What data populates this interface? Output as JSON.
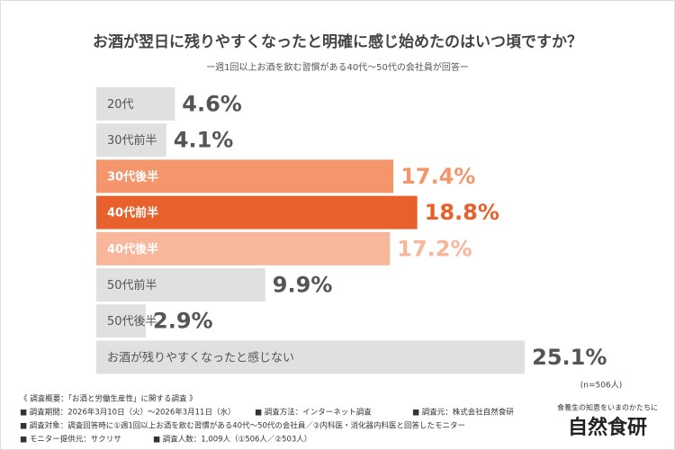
{
  "chart_data": {
    "type": "bar",
    "orientation": "horizontal",
    "title": "お酒が翌日に残りやすくなったと明確に感じ始めたのはいつ頃ですか？",
    "subtitle": "ー週1回以上お酒を飲む習慣がある40代～50代の会社員が回答ー",
    "categories": [
      "20代",
      "30代前半",
      "30代後半",
      "40代前半",
      "40代後半",
      "50代前半",
      "50代後半",
      "お酒が残りやすくなったと感じない"
    ],
    "values": [
      4.6,
      4.1,
      17.4,
      18.8,
      17.2,
      9.9,
      2.9,
      25.1
    ],
    "value_labels": [
      "4.6%",
      "4.1%",
      "17.4%",
      "18.8%",
      "17.2%",
      "9.9%",
      "2.9%",
      "25.1%"
    ],
    "colors": [
      "#e0e0e0",
      "#e0e0e0",
      "#f4956b",
      "#e8612c",
      "#f8b79a",
      "#e0e0e0",
      "#e0e0e0",
      "#e0e0e0"
    ],
    "note": "(n=506人)"
  },
  "footer": {
    "heading": "《 調査概要：「お酒と労働生産性」に関する調査 》",
    "items": [
      "■ 調査期間：2026年3月10日（火）～2026年3月11日（水）",
      "■ 調査方法：インターネット調査",
      "■ 調査元：株式会社自然食研",
      "■ 調査対象：調査回答時に①週1回以上お酒を飲む習慣がある40代～50代の会社員／②内科医・消化器内科医と回答したモニター",
      "■ モニター提供元：サクリサ",
      "■ 調査人数：1,009人（①506人／②503人）"
    ]
  },
  "brand": {
    "tagline": "食養生の知恵をいまのかたちに",
    "name": "自然食研"
  }
}
